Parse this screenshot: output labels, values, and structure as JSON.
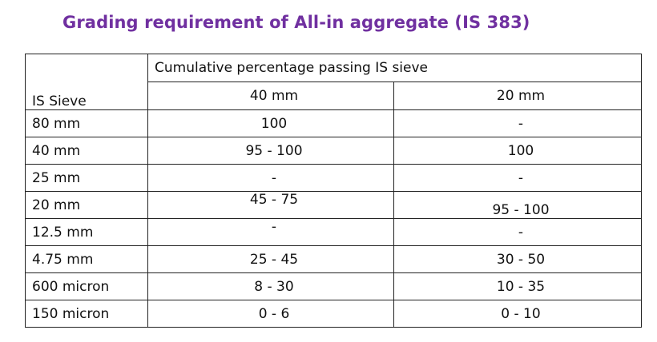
{
  "title": "Grading requirement of All-in aggregate (IS 383)",
  "table": {
    "header": {
      "sieve_label": "IS Sieve",
      "group_label": "Cumulative percentage passing IS sieve",
      "columns": [
        "40 mm",
        "20 mm"
      ]
    },
    "rows": [
      {
        "sieve": "80 mm",
        "c40": "100",
        "c20": "-"
      },
      {
        "sieve": "40 mm",
        "c40": "95 - 100",
        "c20": "100"
      },
      {
        "sieve": "25 mm",
        "c40": "-",
        "c20": "-"
      },
      {
        "sieve": "20 mm",
        "c40": "45 - 75",
        "c20": "95 - 100"
      },
      {
        "sieve": "12.5 mm",
        "c40": "-",
        "c20": "-"
      },
      {
        "sieve": "4.75 mm",
        "c40": "25 - 45",
        "c20": "30 - 50"
      },
      {
        "sieve": "600 micron",
        "c40": "8 - 30",
        "c20": "10 - 35"
      },
      {
        "sieve": "150 micron",
        "c40": "0 - 6",
        "c20": "0 - 10"
      }
    ]
  },
  "colors": {
    "title": "#7030a0",
    "text": "#111111",
    "border": "#222222",
    "background": "#ffffff"
  }
}
